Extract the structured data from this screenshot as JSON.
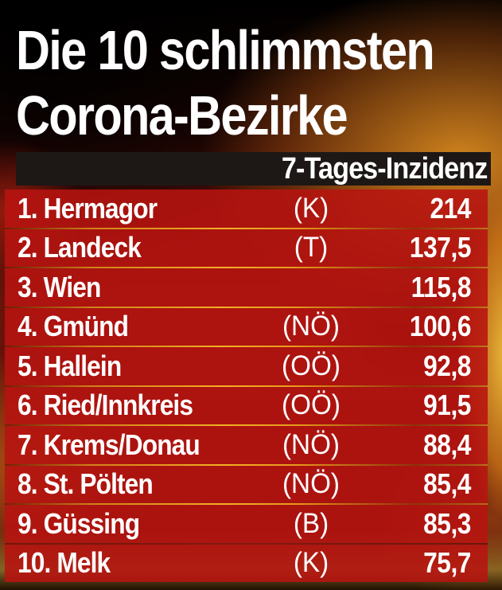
{
  "header": {
    "title_line1": "Die 10 schlimmsten",
    "title_line2": "Corona-Bezirke",
    "column_header": "7-Tages-Inzidenz"
  },
  "table": {
    "rows": [
      {
        "rank": "1.",
        "name": "Hermagor",
        "province": "(K)",
        "value": "214"
      },
      {
        "rank": "2.",
        "name": "Landeck",
        "province": "(T)",
        "value": "137,5"
      },
      {
        "rank": "3.",
        "name": "Wien",
        "province": "",
        "value": "115,8"
      },
      {
        "rank": "4.",
        "name": "Gmünd",
        "province": "(NÖ)",
        "value": "100,6"
      },
      {
        "rank": "5.",
        "name": "Hallein",
        "province": "(OÖ)",
        "value": "92,8"
      },
      {
        "rank": "6.",
        "name": "Ried/Innkreis",
        "province": "(OÖ)",
        "value": "91,5"
      },
      {
        "rank": "7.",
        "name": "Krems/Donau",
        "province": "(NÖ)",
        "value": "88,4"
      },
      {
        "rank": "8.",
        "name": "St. Pölten",
        "province": "(NÖ)",
        "value": "85,4"
      },
      {
        "rank": "9.",
        "name": "Güssing",
        "province": "(B)",
        "value": "85,3"
      },
      {
        "rank": "10.",
        "name": "Melk",
        "province": "(K)",
        "value": "75,7"
      }
    ]
  },
  "colors": {
    "row_red": "#b81310",
    "separator_orange": "#f2b026",
    "header_bar_black": "#1d1816",
    "text_white": "#ffffff",
    "background_glow_orange": "#e19120"
  },
  "chart_data": {
    "type": "table",
    "title": "Die 10 schlimmsten Corona-Bezirke",
    "metric": "7-Tages-Inzidenz",
    "rows": [
      {
        "rank": 1,
        "district": "Hermagor",
        "province": "(K)",
        "incidence": 214
      },
      {
        "rank": 2,
        "district": "Landeck",
        "province": "(T)",
        "incidence": 137.5
      },
      {
        "rank": 3,
        "district": "Wien",
        "province": "",
        "incidence": 115.8
      },
      {
        "rank": 4,
        "district": "Gmünd",
        "province": "(NÖ)",
        "incidence": 100.6
      },
      {
        "rank": 5,
        "district": "Hallein",
        "province": "(OÖ)",
        "incidence": 92.8
      },
      {
        "rank": 6,
        "district": "Ried/Innkreis",
        "province": "(OÖ)",
        "incidence": 91.5
      },
      {
        "rank": 7,
        "district": "Krems/Donau",
        "province": "(NÖ)",
        "incidence": 88.4
      },
      {
        "rank": 8,
        "district": "St. Pölten",
        "province": "(NÖ)",
        "incidence": 85.4
      },
      {
        "rank": 9,
        "district": "Güssing",
        "province": "(B)",
        "incidence": 85.3
      },
      {
        "rank": 10,
        "district": "Melk",
        "province": "(K)",
        "incidence": 75.7
      }
    ]
  }
}
